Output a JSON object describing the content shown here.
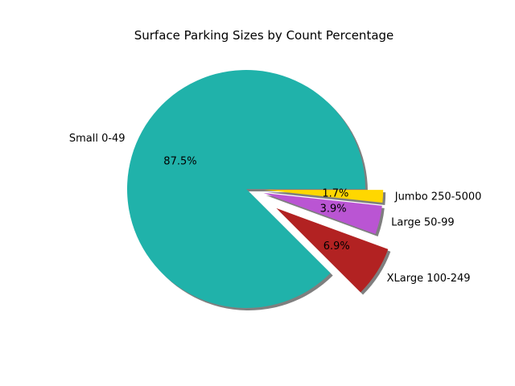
{
  "chart_data": {
    "type": "pie",
    "title": "Surface Parking Sizes by Count Percentage",
    "slices": [
      {
        "label": "Small 0-49",
        "percent": 87.5,
        "pct_label": "87.5%",
        "color": "#20b2aa",
        "explode": 0
      },
      {
        "label": "XLarge 100-249",
        "percent": 6.9,
        "pct_label": "6.9%",
        "color": "#b22222",
        "explode": 0.3
      },
      {
        "label": "Large 50-99",
        "percent": 3.9,
        "pct_label": "3.9%",
        "color": "#ba55d3",
        "explode": 0.15
      },
      {
        "label": "Jumbo 250-5000",
        "percent": 1.7,
        "pct_label": "1.7%",
        "color": "#ffd700",
        "explode": 0.15
      }
    ],
    "start_angle_deg": 0,
    "direction": "counterclockwise",
    "shadow": true,
    "shadow_color": "#7f7f7f"
  }
}
